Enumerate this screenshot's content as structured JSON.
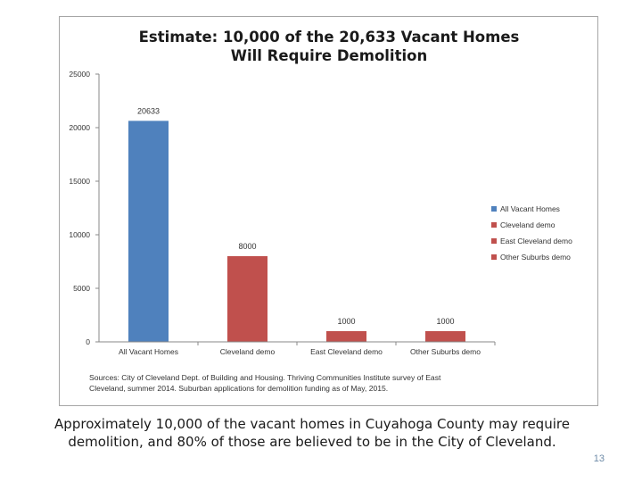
{
  "chart_data": {
    "type": "bar",
    "title_lines": [
      "Estimate:  10,000 of the 20,633 Vacant Homes",
      "Will Require Demolition"
    ],
    "categories": [
      "All Vacant Homes",
      "Cleveland demo",
      "East Cleveland demo",
      "Other Suburbs demo"
    ],
    "values": [
      20633,
      8000,
      1000,
      1000
    ],
    "data_labels": [
      "20633",
      "8000",
      "1000",
      "1000"
    ],
    "ylim": [
      0,
      25000
    ],
    "yticks": [
      0,
      5000,
      10000,
      15000,
      20000,
      25000
    ],
    "ytick_labels": [
      "0",
      "5000",
      "10000",
      "15000",
      "20000",
      "25000"
    ],
    "xlabel": "",
    "ylabel": "",
    "grid": false,
    "legend_position": "right",
    "legend": [
      {
        "label": "All Vacant Homes",
        "color": "#4f81bd"
      },
      {
        "label": "Cleveland demo",
        "color": "#c0504d"
      },
      {
        "label": "East Cleveland demo",
        "color": "#c0504d"
      },
      {
        "label": "Other Suburbs demo",
        "color": "#c0504d"
      }
    ],
    "bar_colors": [
      "#4f81bd",
      "#c0504d",
      "#c0504d",
      "#c0504d"
    ],
    "source_lines": [
      "Sources:  City of Cleveland Dept. of Building and Housing.  Thriving Communities Institute survey of East",
      "Cleveland, summer 2014.  Suburban applications for demolition funding as of May, 2015."
    ]
  },
  "caption_lines": [
    "Approximately 10,000 of the vacant homes in Cuyahoga County may require",
    "demolition, and 80% of those are believed to be in the City of Cleveland."
  ],
  "slide_number": "13"
}
